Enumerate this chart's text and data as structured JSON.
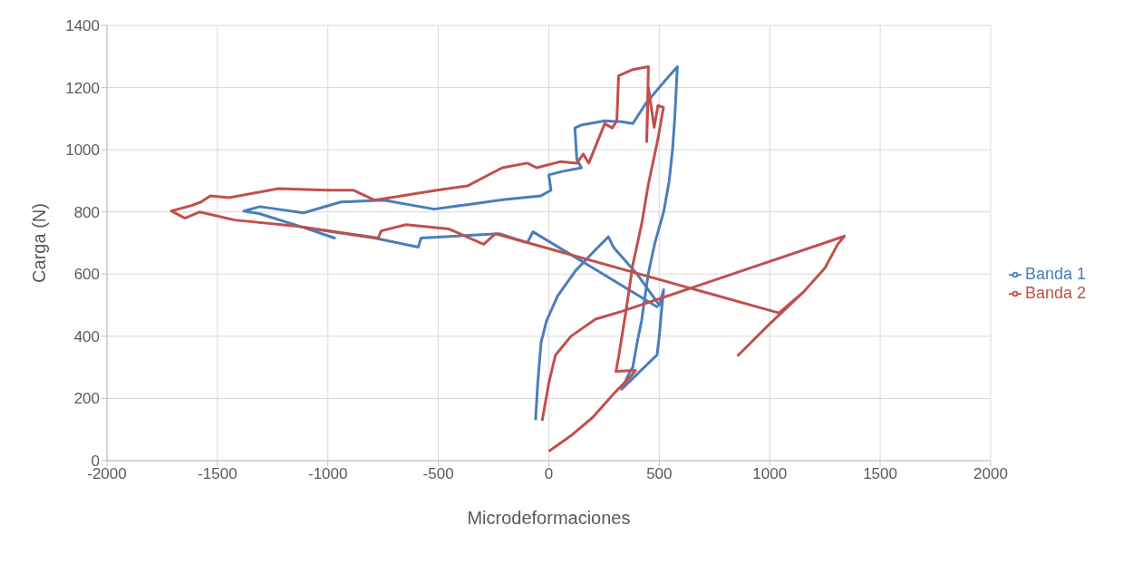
{
  "chart_data": {
    "type": "line",
    "xlabel": "Microdeformaciones",
    "ylabel": "Carga (N)",
    "xlim": [
      -2000,
      2000
    ],
    "ylim": [
      0,
      1400
    ],
    "xticks": [
      -2000,
      -1500,
      -1000,
      -500,
      0,
      500,
      1000,
      1500,
      2000
    ],
    "yticks": [
      0,
      200,
      400,
      600,
      800,
      1000,
      1200,
      1400
    ],
    "grid": true,
    "legend": "right",
    "marker": "none",
    "line_style": "solid",
    "series": [
      {
        "name": "Banda 1",
        "color": "#4a7ebb",
        "x": [
          -60,
          -50,
          -35,
          -10,
          40,
          120,
          200,
          270,
          290,
          300,
          400,
          480,
          500,
          520,
          510,
          500,
          490,
          330,
          370,
          380,
          400,
          420,
          430,
          450,
          480,
          520,
          545,
          560,
          570,
          582,
          520,
          440,
          380,
          330,
          253,
          150,
          118,
          127,
          148,
          60,
          0,
          10,
          -35,
          -200,
          -519,
          -747,
          -941,
          -1110,
          -1308,
          -1380,
          -1308,
          -1110,
          -970,
          -1110,
          -789,
          -591,
          -578,
          -224,
          -97,
          -72,
          200,
          494
        ],
        "values": [
          130,
          250,
          380,
          450,
          530,
          610,
          670,
          720,
          690,
          680,
          600,
          520,
          500,
          550,
          480,
          400,
          340,
          230,
          290,
          300,
          380,
          450,
          500,
          600,
          700,
          800,
          900,
          1000,
          1100,
          1267,
          1217,
          1150,
          1084,
          1090,
          1093,
          1080,
          1070,
          968,
          942,
          930,
          919,
          870,
          852,
          840,
          809,
          838,
          832,
          797,
          817,
          803,
          794,
          750,
          716,
          750,
          716,
          687,
          716,
          730,
          701,
          736,
          620,
          493
        ]
      },
      {
        "name": "Banda 2",
        "color": "#c0504d",
        "x": [
          0,
          100,
          200,
          300,
          370,
          392,
          304,
          316,
          350,
          380,
          420,
          451,
          494,
          519,
          494,
          477,
          451,
          443,
          451,
          380,
          316,
          308,
          287,
          253,
          181,
          156,
          127,
          55,
          -55,
          -97,
          -211,
          -367,
          -506,
          -789,
          -886,
          -1000,
          -1224,
          -1447,
          -1532,
          -1574,
          -1620,
          -1709,
          -1646,
          -1580,
          -1422,
          -1139,
          -772,
          -759,
          -646,
          -451,
          -295,
          -241,
          1042,
          1152,
          1000,
          857,
          1000,
          1152,
          1250,
          1308,
          1338,
          330,
          211,
          100,
          30,
          0,
          -30
        ],
        "values": [
          30,
          80,
          140,
          220,
          270,
          290,
          287,
          333,
          484,
          629,
          760,
          890,
          1035,
          1136,
          1142,
          1072,
          1200,
          1026,
          1267,
          1258,
          1238,
          1093,
          1070,
          1084,
          957,
          986,
          957,
          962,
          942,
          957,
          942,
          884,
          870,
          838,
          870,
          870,
          875,
          846,
          852,
          832,
          820,
          803,
          780,
          800,
          774,
          754,
          716,
          739,
          759,
          745,
          696,
          730,
          475,
          542,
          440,
          339,
          440,
          542,
          620,
          696,
          722,
          480,
          455,
          400,
          339,
          250,
          128
        ]
      }
    ]
  }
}
